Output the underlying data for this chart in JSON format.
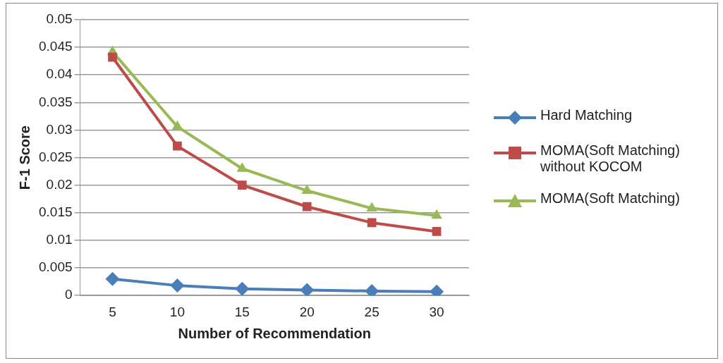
{
  "chart_data": {
    "type": "line",
    "xlabel": "Number of Recommendation",
    "ylabel": "F-1 Score",
    "categories": [
      "5",
      "10",
      "15",
      "20",
      "25",
      "30"
    ],
    "series": [
      {
        "name": "Hard Matching",
        "color": "#4a7ebb",
        "marker": "diamond",
        "values": [
          0.003,
          0.0018,
          0.0012,
          0.001,
          0.0008,
          0.0007
        ]
      },
      {
        "name": "MOMA(Soft Matching) without KOCOM",
        "color": "#be4b48",
        "marker": "square",
        "values": [
          0.0432,
          0.0271,
          0.02,
          0.0161,
          0.0132,
          0.0116
        ]
      },
      {
        "name": "MOMA(Soft Matching)",
        "color": "#98b954",
        "marker": "triangle",
        "values": [
          0.0442,
          0.0306,
          0.023,
          0.019,
          0.0158,
          0.0145
        ]
      }
    ],
    "ylim": [
      0,
      0.05
    ],
    "yticks": [
      0,
      0.005,
      0.01,
      0.015,
      0.02,
      0.025,
      0.03,
      0.035,
      0.04,
      0.045,
      0.05
    ],
    "grid": "y",
    "legend": "right"
  }
}
